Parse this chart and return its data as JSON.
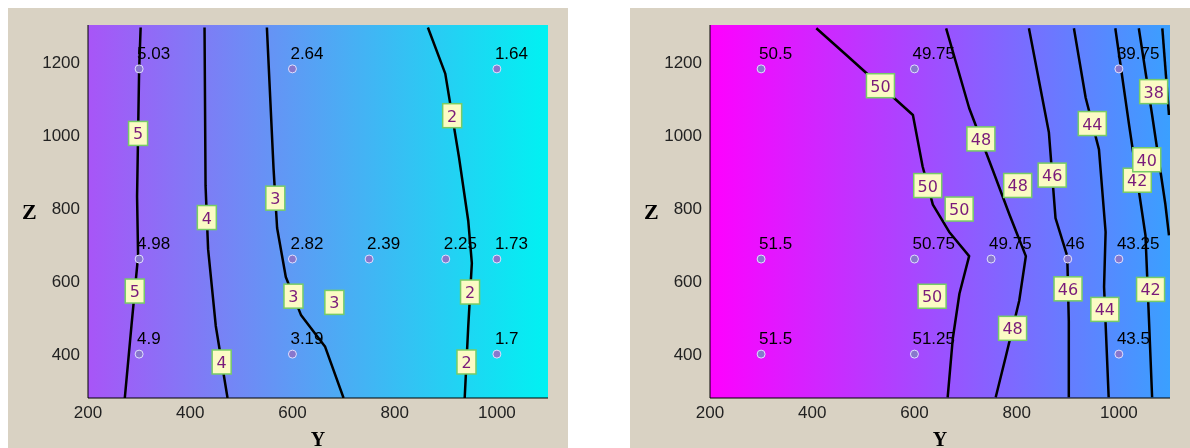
{
  "chart_data": [
    {
      "type": "scatter",
      "xlabel": "Y",
      "ylabel": "Z",
      "xlim": [
        200,
        1100
      ],
      "xticks": [
        200,
        400,
        600,
        800,
        1000
      ],
      "ylim": [
        280,
        1300
      ],
      "yticks": [
        400,
        600,
        800,
        1000,
        1200
      ],
      "grid": false,
      "legend": false,
      "series": [
        {
          "type": "scatter",
          "color": "#8877cc",
          "marker": "circle",
          "x": [
            300,
            600,
            1000,
            300,
            600,
            750,
            900,
            1000,
            300,
            600,
            1000
          ],
          "values": [
            1180,
            1180,
            1180,
            660,
            660,
            660,
            660,
            660,
            400,
            400,
            400
          ]
        },
        {
          "type": "line",
          "name": "5",
          "color": "#000000",
          "marker": "none",
          "x": [
            303,
            300,
            296,
            298,
            285,
            272
          ],
          "values": [
            1293,
            1176,
            831,
            668,
            477,
            280
          ]
        },
        {
          "type": "line",
          "name": "4",
          "color": "#000000",
          "marker": "none",
          "x": [
            428,
            430,
            435,
            450,
            473
          ],
          "values": [
            1293,
            860,
            687,
            477,
            280
          ]
        },
        {
          "type": "line",
          "name": "3",
          "color": "#000000",
          "marker": "none",
          "x": [
            550,
            563,
            570,
            587,
            617,
            664,
            700
          ],
          "values": [
            1293,
            908,
            745,
            611,
            506,
            420,
            280
          ]
        },
        {
          "type": "line",
          "name": "2",
          "color": "#000000",
          "marker": "none",
          "x": [
            865,
            899,
            926,
            944,
            951,
            944,
            937
          ],
          "values": [
            1293,
            1167,
            937,
            764,
            649,
            477,
            280
          ]
        }
      ],
      "annotations": [
        {
          "text": "5.03",
          "x": 300,
          "y": 1180
        },
        {
          "text": "2.64",
          "x": 600,
          "y": 1180
        },
        {
          "text": "1.64",
          "x": 1000,
          "y": 1180
        },
        {
          "text": "4.98",
          "x": 300,
          "y": 660
        },
        {
          "text": "2.82",
          "x": 600,
          "y": 660
        },
        {
          "text": "2.39",
          "x": 750,
          "y": 660
        },
        {
          "text": "2.25",
          "x": 900,
          "y": 660
        },
        {
          "text": "1.73",
          "x": 1000,
          "y": 660
        },
        {
          "text": "4.9",
          "x": 300,
          "y": 400
        },
        {
          "text": "3.19",
          "x": 600,
          "y": 400
        },
        {
          "text": "1.7",
          "x": 1000,
          "y": 400
        }
      ]
    },
    {
      "type": "scatter",
      "xlabel": "Y",
      "ylabel": "Z",
      "xlim": [
        200,
        1100
      ],
      "xticks": [
        200,
        400,
        600,
        800,
        1000
      ],
      "ylim": [
        280,
        1300
      ],
      "yticks": [
        400,
        600,
        800,
        1000,
        1200
      ],
      "grid": false,
      "legend": false,
      "series": [
        {
          "type": "scatter",
          "color": "#8877cc",
          "marker": "circle",
          "x": [
            300,
            600,
            1000,
            300,
            600,
            750,
            900,
            1000,
            300,
            600,
            1000
          ],
          "values": [
            1180,
            1180,
            1180,
            660,
            660,
            660,
            660,
            660,
            400,
            400,
            400
          ]
        },
        {
          "type": "line",
          "name": "50",
          "color": "#000000",
          "marker": "none",
          "x": [
            408,
            470,
            597,
            616,
            636,
            668,
            707,
            688,
            675,
            665
          ],
          "values": [
            1291,
            1214,
            1054,
            913,
            809,
            734,
            668,
            565,
            442,
            282
          ]
        },
        {
          "type": "line",
          "name": "48",
          "color": "#000000",
          "marker": "none",
          "x": [
            662,
            707,
            753,
            786,
            818,
            805,
            779,
            759
          ],
          "values": [
            1291,
            1073,
            904,
            781,
            668,
            546,
            395,
            282
          ]
        },
        {
          "type": "line",
          "name": "46",
          "color": "#000000",
          "marker": "none",
          "x": [
            824,
            863,
            876,
            899,
            902,
            902
          ],
          "values": [
            1291,
            1007,
            772,
            668,
            489,
            282
          ]
        },
        {
          "type": "line",
          "name": "44",
          "color": "#000000",
          "marker": "none",
          "x": [
            912,
            935,
            961,
            974,
            971,
            980
          ],
          "values": [
            1291,
            1101,
            960,
            734,
            584,
            282
          ]
        },
        {
          "type": "line",
          "name": "42",
          "color": "#000000",
          "marker": "none",
          "x": [
            993,
            1020,
            1052,
            1059,
            1065
          ],
          "values": [
            1291,
            1026,
            725,
            489,
            282
          ]
        },
        {
          "type": "line",
          "name": "40",
          "color": "#000000",
          "marker": "none",
          "x": [
            1039,
            1065,
            1091,
            1098
          ],
          "values": [
            1291,
            1054,
            809,
            725
          ]
        },
        {
          "type": "line",
          "name": "38",
          "color": "#000000",
          "marker": "none",
          "x": [
            1085,
            1098
          ],
          "values": [
            1291,
            1054
          ]
        }
      ],
      "annotations": [
        {
          "text": "50.5",
          "x": 300,
          "y": 1180
        },
        {
          "text": "49.75",
          "x": 600,
          "y": 1180
        },
        {
          "text": "39.75",
          "x": 1000,
          "y": 1180
        },
        {
          "text": "51.5",
          "x": 300,
          "y": 660
        },
        {
          "text": "50.75",
          "x": 600,
          "y": 660
        },
        {
          "text": "49.75",
          "x": 750,
          "y": 660
        },
        {
          "text": "46",
          "x": 900,
          "y": 660
        },
        {
          "text": "43.25",
          "x": 1000,
          "y": 660
        },
        {
          "text": "51.5",
          "x": 300,
          "y": 400
        },
        {
          "text": "51.25",
          "x": 600,
          "y": 400
        },
        {
          "text": "43.5",
          "x": 1000,
          "y": 400
        }
      ]
    }
  ]
}
